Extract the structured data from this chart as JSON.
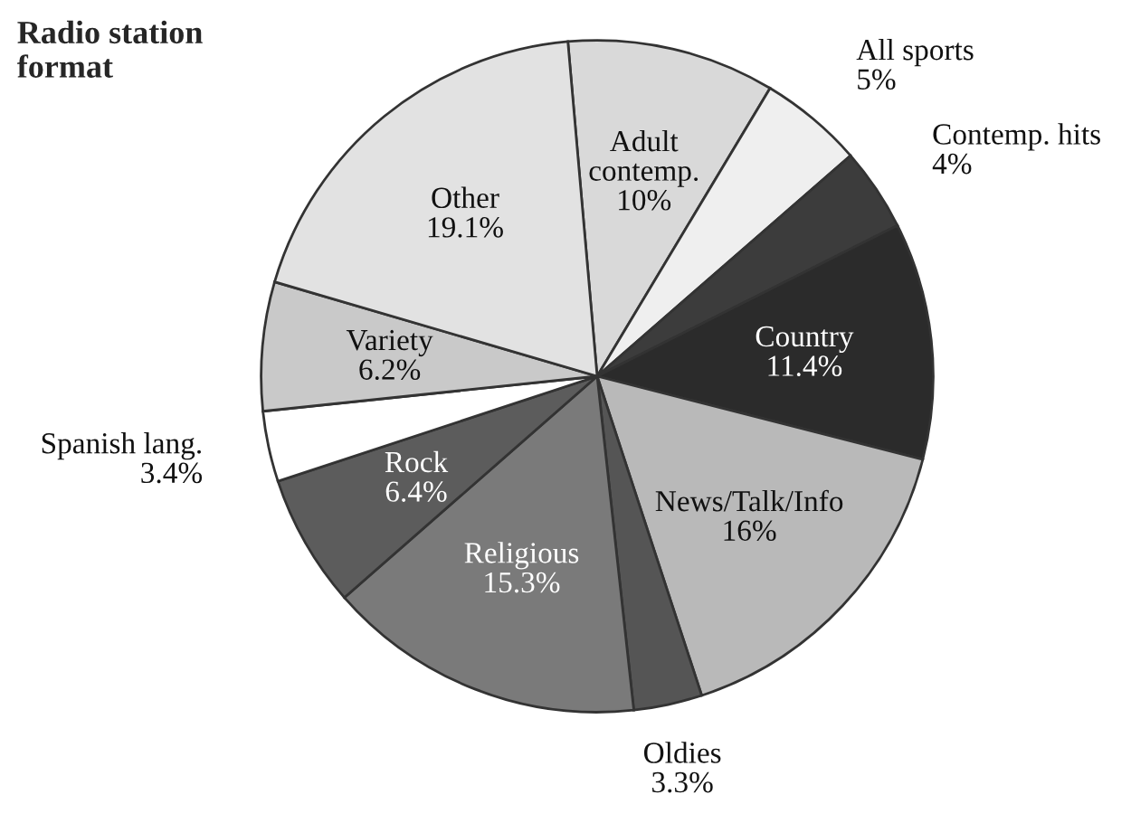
{
  "chart_data": {
    "type": "pie",
    "title": "Radio station\nformat",
    "categories": [
      "Adult\ncontemp.",
      "All sports",
      "Contemp. hits",
      "Country",
      "News/Talk/Info",
      "Oldies",
      "Religious",
      "Rock",
      "Spanish lang.",
      "Variety",
      "Other"
    ],
    "values": [
      10,
      5,
      4,
      11.4,
      16,
      3.3,
      15.3,
      6.4,
      3.4,
      6.2,
      19.1
    ],
    "value_labels": [
      "10%",
      "5%",
      "4%",
      "11.4%",
      "16%",
      "3.3%",
      "15.3%",
      "6.4%",
      "3.4%",
      "6.2%",
      "19.1%"
    ],
    "colors": [
      "#d9d9d9",
      "#efefef",
      "#3c3c3c",
      "#2b2b2b",
      "#b9b9b9",
      "#555555",
      "#7a7a7a",
      "#5c5c5c",
      "#ffffff",
      "#c9c9c9",
      "#e2e2e2"
    ],
    "legend": false
  }
}
